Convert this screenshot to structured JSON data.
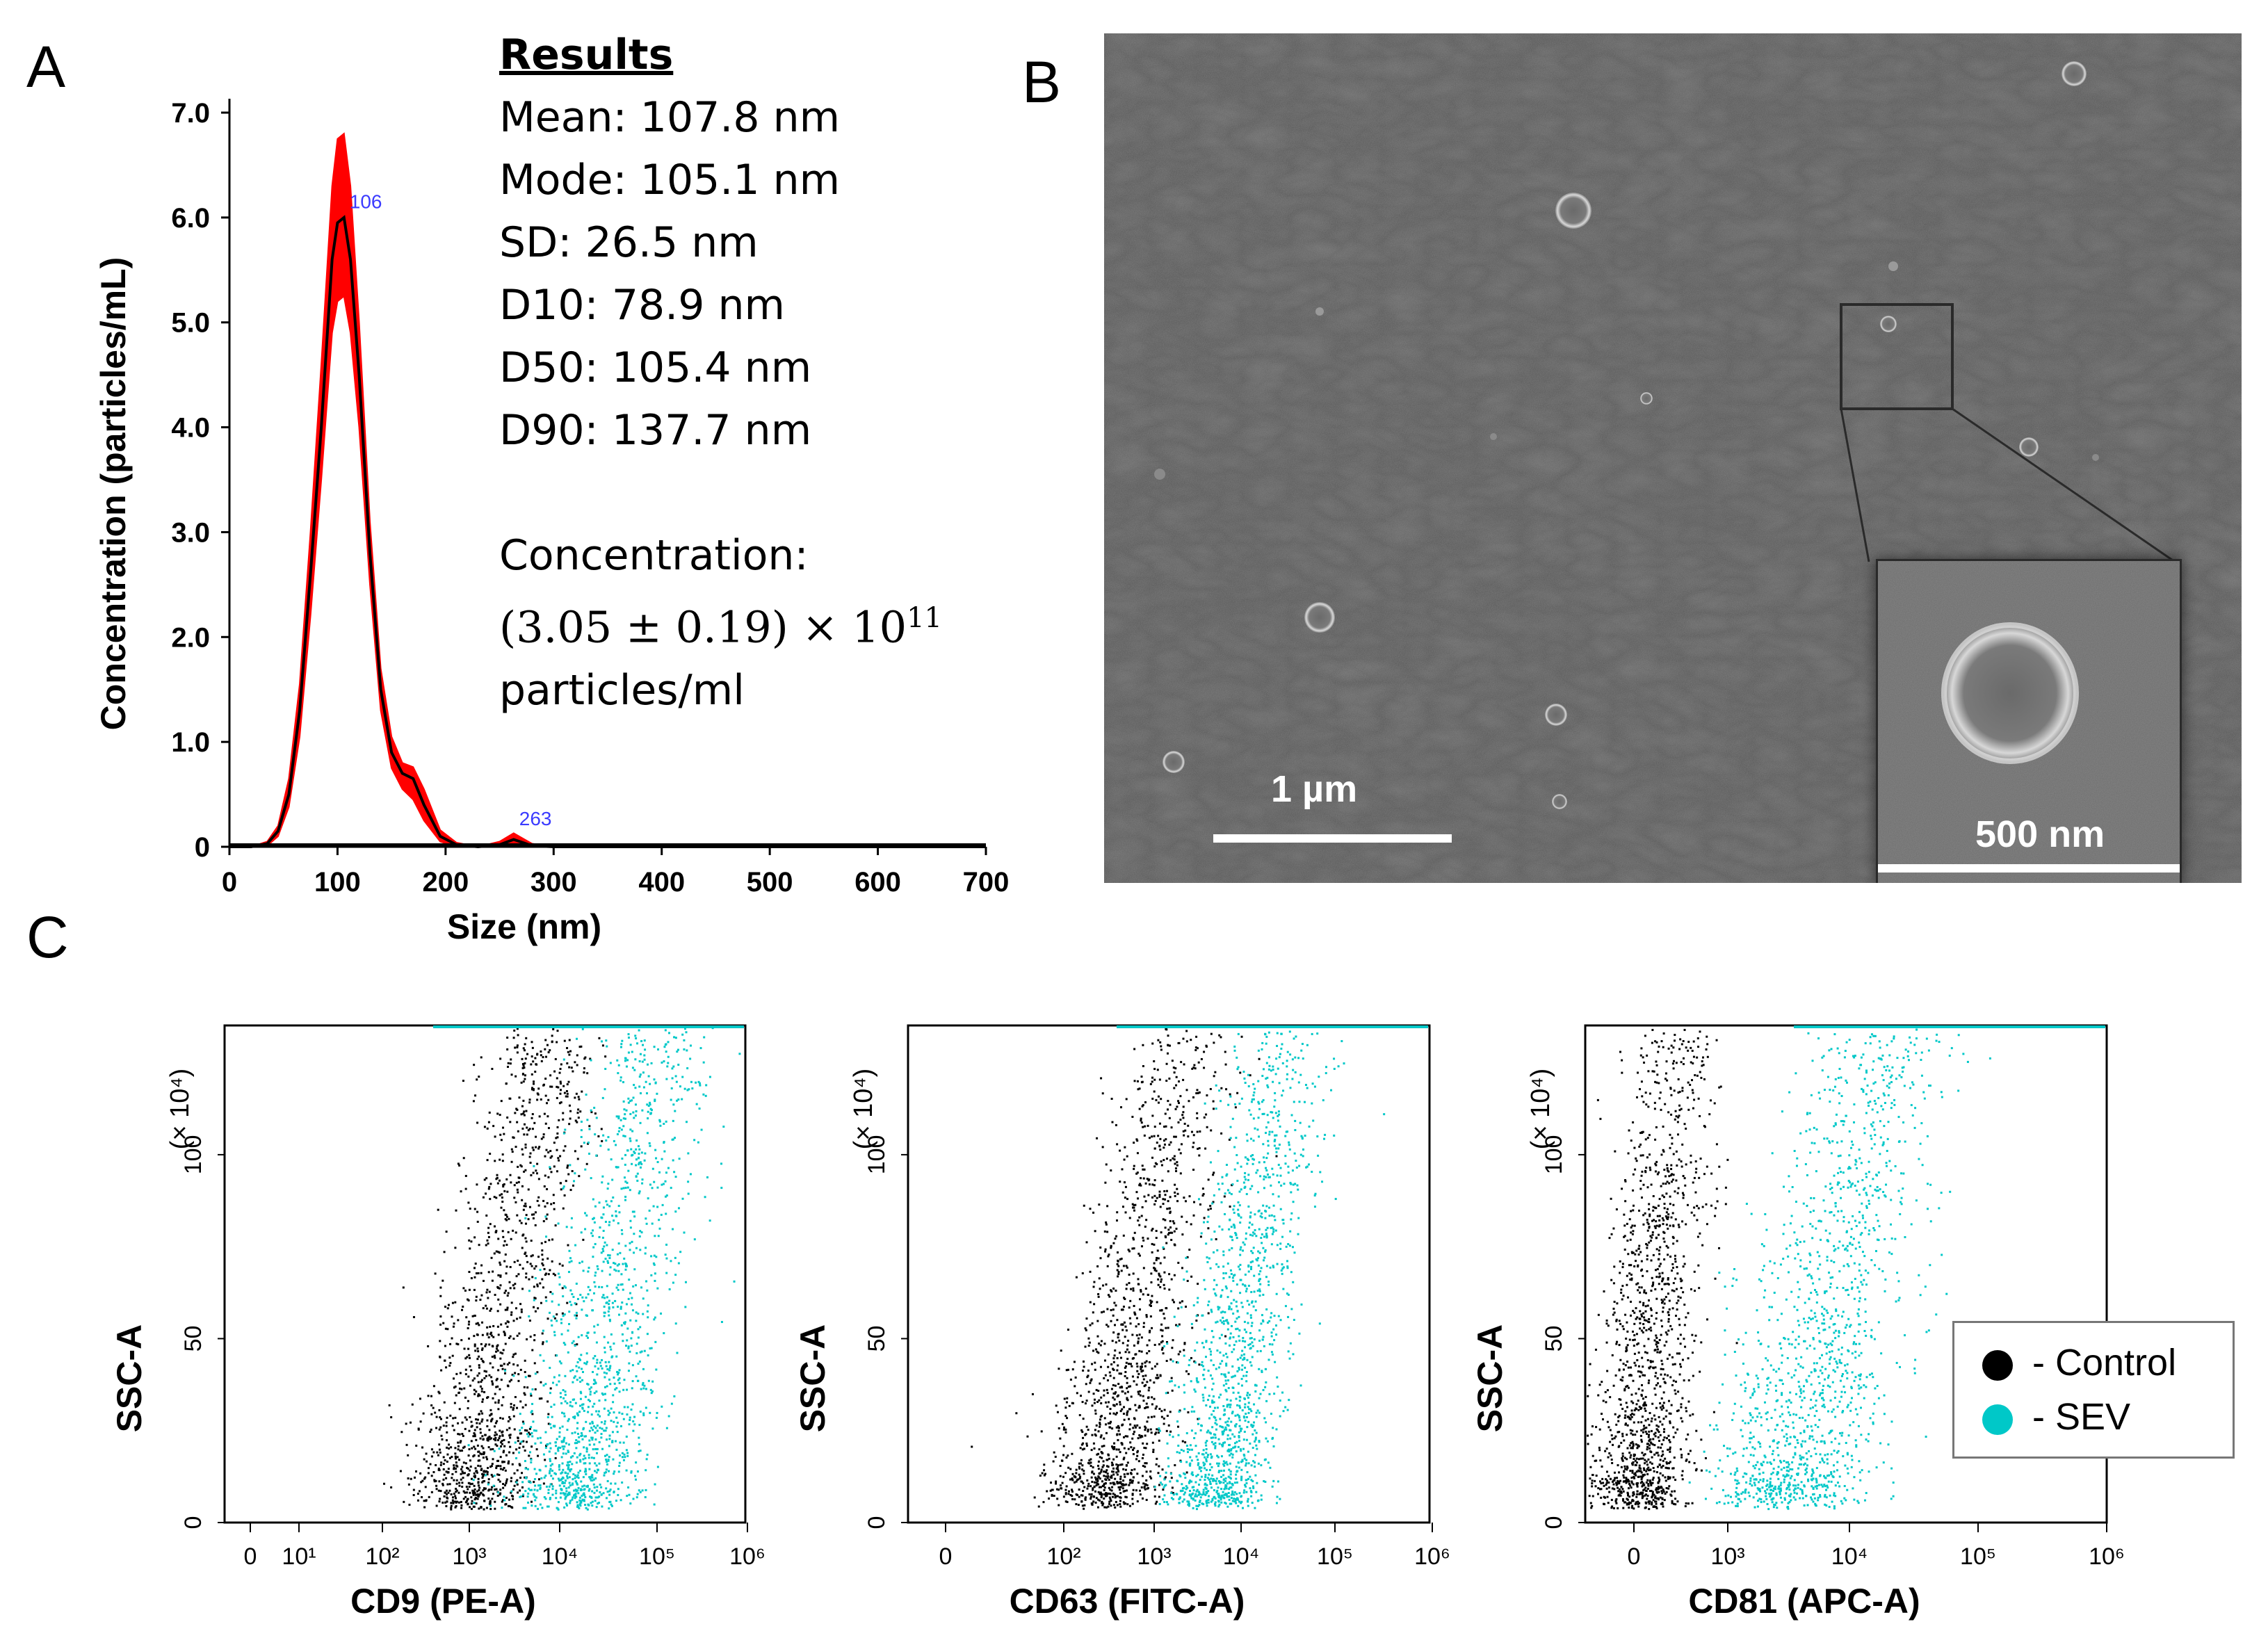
{
  "panels": {
    "a": "A",
    "b": "B",
    "c": "C"
  },
  "results": {
    "header": "Results",
    "mean": "Mean: 107.8 nm",
    "mode": "Mode: 105.1 nm",
    "sd": "SD: 26.5 nm",
    "d10": "D10: 78.9 nm",
    "d50": "D50: 105.4 nm",
    "d90": "D90: 137.7 nm",
    "concentration_label": "Concentration:",
    "concentration_value": "(3.05 ± 0.19) × 10",
    "concentration_exp": "11",
    "concentration_unit": "particles/ml"
  },
  "sem": {
    "scale_main": "1 µm",
    "scale_inset": "500 nm"
  },
  "legend": {
    "control": "- Control",
    "sev": "- SEV",
    "control_color": "#000000",
    "sev_color": "#00c8c8"
  },
  "chart_data": [
    {
      "type": "area",
      "title": "",
      "xlabel": "Size (nm)",
      "ylabel": "Concentration (particles/mL)",
      "xlim": [
        0,
        700
      ],
      "ylim": [
        0,
        7.0
      ],
      "xticks": [
        "0",
        "100",
        "200",
        "300",
        "400",
        "500",
        "600",
        "700"
      ],
      "yticks": [
        "0",
        "1.0",
        "2.0",
        "3.0",
        "4.0",
        "5.0",
        "6.0",
        "7.0"
      ],
      "peak_labels": [
        {
          "x": 106,
          "label": "106"
        },
        {
          "x": 263,
          "label": "263"
        }
      ],
      "x": [
        0,
        20,
        35,
        45,
        55,
        65,
        75,
        85,
        95,
        100,
        106,
        112,
        120,
        130,
        140,
        150,
        160,
        170,
        180,
        195,
        210,
        230,
        250,
        263,
        280,
        300,
        700
      ],
      "series": [
        {
          "name": "mean",
          "values": [
            0,
            0,
            0.03,
            0.15,
            0.5,
            1.3,
            2.6,
            4.0,
            5.6,
            5.95,
            6.0,
            5.6,
            4.5,
            2.8,
            1.5,
            0.9,
            0.7,
            0.65,
            0.4,
            0.1,
            0.02,
            0,
            0.02,
            0.07,
            0.01,
            0,
            0
          ]
        },
        {
          "name": "upper",
          "values": [
            0,
            0,
            0.05,
            0.2,
            0.65,
            1.55,
            3.0,
            4.6,
            6.3,
            6.75,
            6.8,
            6.3,
            5.0,
            3.1,
            1.7,
            1.05,
            0.8,
            0.76,
            0.55,
            0.16,
            0.04,
            0,
            0.05,
            0.13,
            0.03,
            0,
            0
          ]
        },
        {
          "name": "lower",
          "values": [
            0,
            0,
            0.01,
            0.1,
            0.38,
            1.05,
            2.2,
            3.5,
            4.9,
            5.2,
            5.25,
            4.9,
            4.0,
            2.5,
            1.3,
            0.75,
            0.55,
            0.45,
            0.25,
            0.05,
            0,
            0,
            0,
            0.02,
            0,
            0,
            0
          ]
        }
      ],
      "colors": {
        "mean": "#000000",
        "band": "#ff0000"
      }
    },
    {
      "type": "scatter",
      "xlabel": "CD9 (PE-A)",
      "ylabel": "SSC-A",
      "y_multiplier": "(× 10⁴)",
      "yticks": [
        "0",
        "50",
        "100"
      ],
      "xticks": [
        "0",
        "10¹",
        "10²",
        "10³",
        "10⁴",
        "10⁵",
        "10⁶"
      ],
      "series": [
        {
          "name": "Control",
          "center_log": 2.9,
          "spread": 0.55,
          "curve": 0.55
        },
        {
          "name": "SEV",
          "center_log": 4.05,
          "spread": 0.6,
          "curve": 0.6
        }
      ]
    },
    {
      "type": "scatter",
      "xlabel": "CD63 (FITC-A)",
      "ylabel": "SSC-A",
      "y_multiplier": "(× 10⁴)",
      "yticks": [
        "0",
        "50",
        "100"
      ],
      "xticks": [
        "0",
        "10²",
        "10³",
        "10⁴",
        "10⁵",
        "10⁶"
      ],
      "series": [
        {
          "name": "Control",
          "center_log": 2.6,
          "spread": 0.5,
          "curve": 0.55
        },
        {
          "name": "SEV",
          "center_log": 3.75,
          "spread": 0.45,
          "curve": 0.45
        }
      ]
    },
    {
      "type": "scatter",
      "xlabel": "CD81 (APC-A)",
      "ylabel": "SSC-A",
      "y_multiplier": "(× 10⁴)",
      "yticks": [
        "0",
        "50",
        "100"
      ],
      "xticks": [
        "0",
        "10³",
        "10⁴",
        "10⁵",
        "10⁶"
      ],
      "series": [
        {
          "name": "Control",
          "center_log": 0.0,
          "spread": 0.35,
          "curve": 0.1
        },
        {
          "name": "SEV",
          "center_log": 3.5,
          "spread": 0.5,
          "curve": 0.5
        }
      ]
    }
  ]
}
